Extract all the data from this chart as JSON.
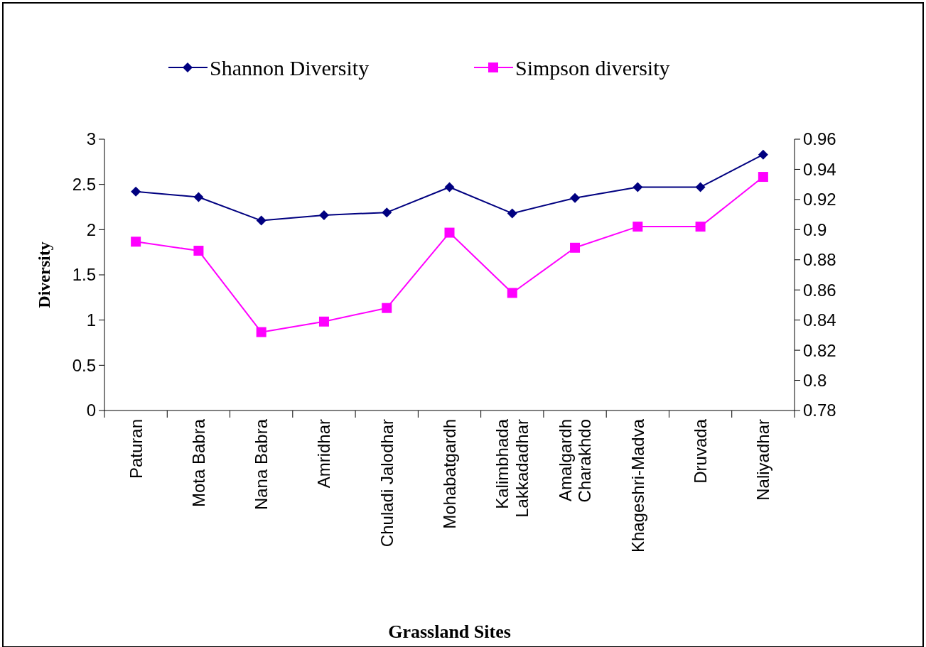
{
  "chart_data": {
    "type": "line",
    "xlabel": "Grassland Sites",
    "ylabel": "Diversity",
    "categories": [
      "Paturan",
      "Mota Babra",
      "Nana Babra",
      "Amridhar",
      "Chuladi Jalodhar",
      "Mohabatgardh",
      "Kalimbhada Lakkadadhar",
      "Amalgardh Charakhdo",
      "Khageshri-Madva",
      "Druvada",
      "Naliyadhar"
    ],
    "series": [
      {
        "name": "Shannon Diversity",
        "color": "#000080",
        "marker": "diamond",
        "values": [
          2.42,
          2.36,
          2.1,
          2.16,
          2.19,
          2.47,
          2.18,
          2.35,
          2.47,
          2.47,
          2.83
        ]
      },
      {
        "name": "Simpson diversity",
        "color": "#ff00ff",
        "marker": "square",
        "axis": "y2",
        "values": [
          0.892,
          0.886,
          0.832,
          0.839,
          0.848,
          0.898,
          0.858,
          0.888,
          0.902,
          0.902,
          0.935
        ]
      }
    ],
    "ylim": [
      0,
      3
    ],
    "yticks": [
      0,
      0.5,
      1,
      1.5,
      2,
      2.5,
      3
    ],
    "y2lim": [
      0.78,
      0.96
    ],
    "y2ticks": [
      0.78,
      0.8,
      0.82,
      0.84,
      0.86,
      0.88,
      0.9,
      0.92,
      0.94,
      0.96
    ],
    "legend": "top",
    "grid": false
  }
}
